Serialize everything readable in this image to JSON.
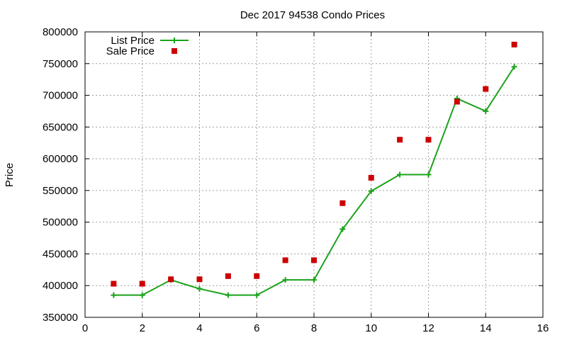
{
  "chart_data": {
    "type": "line",
    "title": "Dec 2017 94538 Condo Prices",
    "xlabel": "",
    "ylabel": "Price",
    "xlim": [
      0,
      16
    ],
    "ylim": [
      350000,
      800000
    ],
    "x_ticks": [
      0,
      2,
      4,
      6,
      8,
      10,
      12,
      14,
      16
    ],
    "y_ticks": [
      350000,
      400000,
      450000,
      500000,
      550000,
      600000,
      650000,
      700000,
      750000,
      800000
    ],
    "grid": true,
    "legend_position": "top-left",
    "series": [
      {
        "name": "List Price",
        "style": "line-with-plus-markers",
        "color": "#1aa31a",
        "x": [
          1,
          2,
          3,
          4,
          5,
          6,
          7,
          8,
          9,
          10,
          11,
          12,
          13,
          14,
          15
        ],
        "values": [
          385000,
          385000,
          409000,
          395000,
          385000,
          385000,
          409000,
          409000,
          489000,
          549000,
          575000,
          575000,
          695000,
          675000,
          745000
        ]
      },
      {
        "name": "Sale Price",
        "style": "square-markers",
        "color": "#cc0000",
        "x": [
          1,
          2,
          3,
          4,
          5,
          6,
          7,
          8,
          9,
          10,
          11,
          12,
          13,
          14,
          15
        ],
        "values": [
          403000,
          403000,
          410000,
          410000,
          415000,
          415000,
          440000,
          440000,
          530000,
          570000,
          630000,
          630000,
          690000,
          710000,
          780000
        ]
      }
    ]
  }
}
